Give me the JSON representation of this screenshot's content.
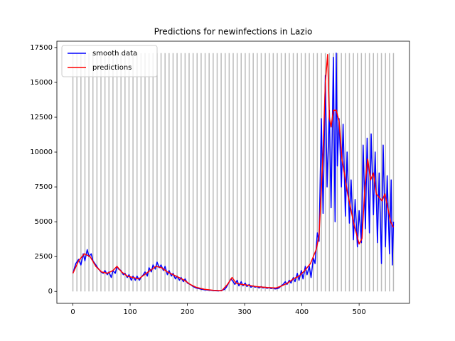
{
  "chart_data": {
    "type": "line",
    "title": "Predictions for newinfections in Lazio",
    "xlim": [
      -28,
      588
    ],
    "xticks": [
      0,
      100,
      200,
      300,
      400,
      500
    ],
    "ylim": [
      -855,
      17955
    ],
    "yticks": [
      0,
      2500,
      5000,
      7500,
      10000,
      12500,
      15000,
      17500
    ],
    "legend": "upper left",
    "vlines": {
      "color": "#bbbbbb",
      "ymin": 0,
      "ymax": 17100,
      "x": [
        0,
        7,
        14,
        21,
        28,
        35,
        42,
        49,
        56,
        63,
        70,
        77,
        84,
        91,
        98,
        105,
        112,
        119,
        126,
        133,
        140,
        147,
        154,
        161,
        168,
        175,
        182,
        189,
        196,
        203,
        210,
        217,
        224,
        231,
        238,
        245,
        252,
        259,
        266,
        273,
        280,
        287,
        294,
        301,
        308,
        315,
        322,
        329,
        336,
        343,
        350,
        357,
        364,
        371,
        378,
        385,
        392,
        399,
        406,
        413,
        420,
        427,
        434,
        441,
        448,
        455,
        462,
        469,
        476,
        483,
        490,
        497,
        504,
        511,
        518,
        525,
        532,
        539,
        546,
        553,
        560
      ]
    },
    "series": [
      {
        "name": "smooth data",
        "color": "#0000ff",
        "x": [
          0,
          5,
          10,
          14,
          18,
          21,
          25,
          28,
          32,
          35,
          40,
          45,
          49,
          53,
          56,
          60,
          63,
          67,
          70,
          74,
          77,
          80,
          84,
          88,
          91,
          95,
          98,
          102,
          105,
          109,
          112,
          116,
          119,
          123,
          126,
          130,
          133,
          137,
          140,
          144,
          147,
          151,
          154,
          158,
          161,
          165,
          168,
          172,
          175,
          179,
          182,
          186,
          189,
          193,
          196,
          200,
          205,
          210,
          215,
          220,
          225,
          230,
          235,
          240,
          245,
          250,
          255,
          260,
          265,
          268,
          272,
          276,
          280,
          283,
          287,
          290,
          294,
          297,
          301,
          304,
          308,
          311,
          315,
          318,
          322,
          325,
          329,
          332,
          336,
          339,
          343,
          346,
          350,
          353,
          357,
          360,
          364,
          367,
          371,
          374,
          378,
          381,
          385,
          388,
          392,
          395,
          399,
          402,
          406,
          409,
          413,
          416,
          420,
          423,
          427,
          430,
          434,
          437,
          441,
          444,
          448,
          451,
          455,
          458,
          460,
          462,
          465,
          469,
          472,
          476,
          479,
          483,
          486,
          490,
          493,
          497,
          500,
          504,
          507,
          511,
          514,
          518,
          521,
          525,
          528,
          532,
          535,
          539,
          542,
          546,
          549,
          553,
          556,
          558,
          560
        ],
        "values": [
          1300,
          2000,
          2300,
          1900,
          2700,
          2200,
          3000,
          2500,
          2700,
          2200,
          1900,
          1600,
          1400,
          1300,
          1500,
          1200,
          1400,
          1000,
          1500,
          1300,
          1800,
          1600,
          1500,
          1200,
          1300,
          1000,
          1200,
          800,
          1100,
          800,
          1100,
          800,
          1000,
          1200,
          1400,
          1100,
          1700,
          1400,
          1900,
          1600,
          2100,
          1700,
          1900,
          1500,
          1800,
          1200,
          1500,
          1100,
          1300,
          900,
          1100,
          800,
          1000,
          700,
          900,
          600,
          500,
          350,
          250,
          200,
          150,
          120,
          100,
          80,
          60,
          50,
          40,
          80,
          150,
          300,
          600,
          900,
          700,
          500,
          800,
          400,
          700,
          400,
          600,
          350,
          500,
          300,
          400,
          300,
          350,
          250,
          350,
          250,
          300,
          220,
          280,
          200,
          250,
          180,
          200,
          250,
          400,
          500,
          700,
          500,
          800,
          600,
          1000,
          700,
          1300,
          800,
          1500,
          900,
          1800,
          1200,
          1800,
          1000,
          2400,
          2000,
          4200,
          3600,
          12400,
          5600,
          15500,
          7500,
          13000,
          6000,
          16800,
          5000,
          17100,
          9000,
          12400,
          7500,
          12000,
          5400,
          10000,
          4900,
          8000,
          3700,
          6600,
          3200,
          5800,
          3500,
          10500,
          4500,
          11000,
          4200,
          11300,
          5500,
          10000,
          3500,
          8500,
          2000,
          10500,
          3200,
          8300,
          2700,
          8000,
          1900,
          5000
        ]
      },
      {
        "name": "predictions",
        "color": "#ff0000",
        "x": [
          0,
          10,
          20,
          30,
          40,
          50,
          60,
          70,
          77,
          85,
          95,
          105,
          115,
          125,
          135,
          145,
          155,
          165,
          175,
          185,
          195,
          205,
          215,
          230,
          245,
          260,
          270,
          278,
          285,
          295,
          305,
          320,
          340,
          355,
          365,
          375,
          385,
          395,
          405,
          415,
          425,
          430,
          437,
          441,
          445,
          448,
          451,
          455,
          460,
          465,
          470,
          480,
          490,
          500,
          505,
          510,
          515,
          520,
          525,
          530,
          540,
          545,
          550,
          555,
          560
        ],
        "values": [
          1300,
          2200,
          2700,
          2500,
          1800,
          1400,
          1300,
          1500,
          1800,
          1400,
          1100,
          1000,
          900,
          1200,
          1500,
          1800,
          1700,
          1400,
          1200,
          1000,
          800,
          500,
          300,
          150,
          80,
          50,
          500,
          1000,
          600,
          500,
          450,
          350,
          280,
          250,
          400,
          600,
          900,
          1100,
          1500,
          2000,
          3000,
          4000,
          10000,
          15000,
          17000,
          12500,
          11800,
          13000,
          13000,
          12200,
          9500,
          7000,
          5000,
          3400,
          3800,
          7500,
          9500,
          8000,
          8500,
          7000,
          6500,
          7000,
          6000,
          5000,
          4600
        ]
      }
    ]
  }
}
